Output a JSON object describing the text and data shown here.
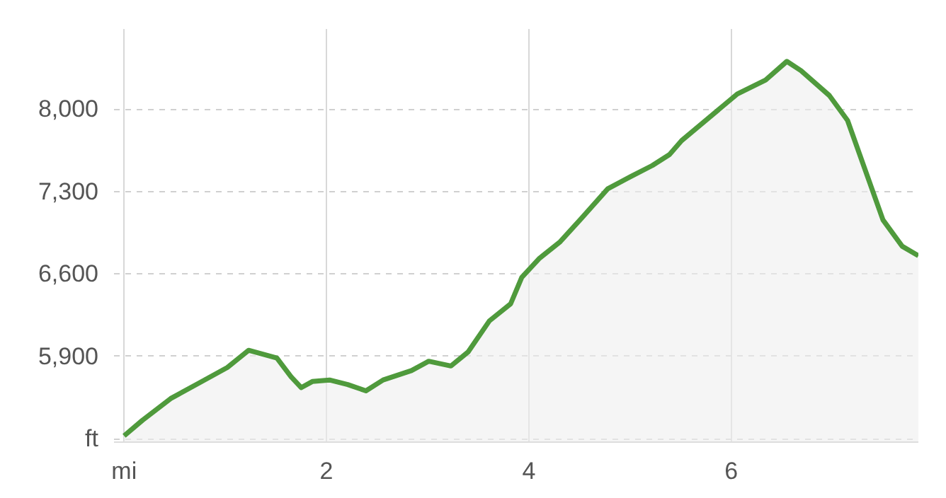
{
  "chart_data": {
    "type": "area",
    "x": [
      0,
      0.18,
      0.46,
      0.74,
      1.02,
      1.23,
      1.51,
      1.65,
      1.75,
      1.86,
      2.03,
      2.21,
      2.39,
      2.56,
      2.84,
      3.01,
      3.23,
      3.4,
      3.61,
      3.82,
      3.93,
      4.1,
      4.31,
      4.52,
      4.78,
      5.01,
      5.22,
      5.39,
      5.51,
      6.06,
      6.34,
      6.55,
      6.69,
      6.97,
      7.15,
      7.5,
      7.69,
      7.85
    ],
    "series": [
      {
        "color": "#4f9a3c",
        "values": [
          5223,
          5355,
          5540,
          5672,
          5804,
          5950,
          5884,
          5725,
          5633,
          5685,
          5698,
          5659,
          5606,
          5698,
          5778,
          5857,
          5817,
          5936,
          6200,
          6345,
          6569,
          6728,
          6873,
          7071,
          7322,
          7428,
          7520,
          7613,
          7732,
          8128,
          8247,
          8405,
          8326,
          8115,
          7903,
          7058,
          6834,
          6754
        ]
      }
    ],
    "xlim": [
      -0.1,
      7.85
    ],
    "ylim": [
      5170,
      8680
    ],
    "xticks": [
      {
        "value": 0,
        "label": "mi"
      },
      2,
      4,
      6
    ],
    "yticks": [
      {
        "value": 5200,
        "label": "ft"
      },
      {
        "value": 5900,
        "label": "5,900"
      },
      {
        "value": 6600,
        "label": "6,600"
      },
      {
        "value": 7300,
        "label": "7,300"
      },
      {
        "value": 8000,
        "label": "8,000"
      }
    ],
    "grid": true
  }
}
